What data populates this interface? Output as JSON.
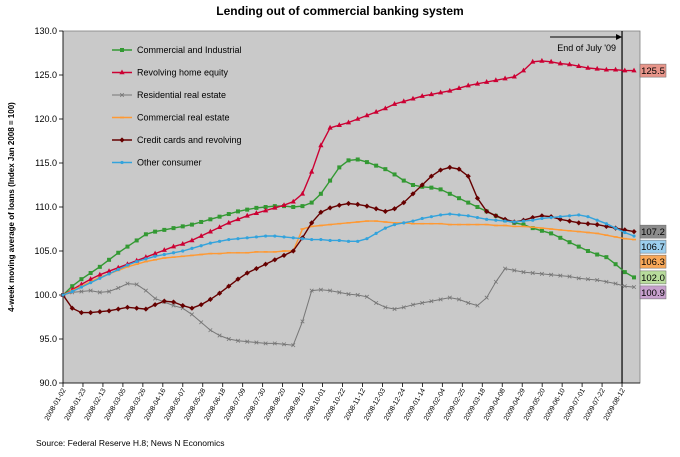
{
  "chart_data": {
    "type": "line",
    "title": "Lending out of commercial banking system",
    "ylabel": "4-week moving average of loans (Index Jan 2008 = 100)",
    "xlabel": "",
    "ylim": [
      90,
      130
    ],
    "yticks": [
      "90.0",
      "95.0",
      "100.0",
      "105.0",
      "110.0",
      "115.0",
      "120.0",
      "125.0",
      "130.0"
    ],
    "x_tick_labels": [
      "2008-01-02",
      "2008-01-23",
      "2008-02-13",
      "2008-03-05",
      "2008-03-26",
      "2008-04-16",
      "2008-05-07",
      "2008-05-28",
      "2008-06-18",
      "2008-07-09",
      "2008-07-30",
      "2008-08-20",
      "2008-09-10",
      "2008-10-01",
      "2008-10-22",
      "2008-11-12",
      "2008-12-03",
      "2008-12-24",
      "2009-01-14",
      "2009-02-04",
      "2009-02-25",
      "2009-03-18",
      "2009-04-08",
      "2009-04-29",
      "2009-05-20",
      "2009-06-10",
      "2009-07-01",
      "2009-07-22",
      "2009-08-12"
    ],
    "marker_line": {
      "label": "End of July '09",
      "x_index": 28.0
    },
    "series": [
      {
        "name": "Commercial and Industrial",
        "color": "#339933",
        "marker": "square",
        "end_label": "102.0",
        "label_color": "#b8dc9c",
        "values": [
          100,
          101,
          101.8,
          102.5,
          103.2,
          104,
          104.8,
          105.5,
          106.2,
          106.9,
          107.2,
          107.4,
          107.6,
          107.8,
          108,
          108.3,
          108.6,
          108.9,
          109.2,
          109.5,
          109.7,
          109.9,
          110,
          110.1,
          110.1,
          110,
          110.1,
          110.5,
          111.5,
          113,
          114.5,
          115.3,
          115.4,
          115.1,
          114.7,
          114.3,
          113.7,
          113,
          112.5,
          112.3,
          112.2,
          112,
          111.5,
          111,
          110.5,
          110,
          109.5,
          109,
          108.5,
          108.2,
          108,
          107.6,
          107.3,
          107,
          106.5,
          106,
          105.5,
          105,
          104.6,
          104.3,
          103.5,
          102.6,
          102
        ]
      },
      {
        "name": "Revolving home equity",
        "color": "#cc0033",
        "marker": "triangle",
        "end_label": "125.5",
        "label_color": "#e8958a",
        "values": [
          100,
          100.6,
          101.2,
          101.8,
          102.3,
          102.7,
          103.1,
          103.5,
          103.9,
          104.3,
          104.7,
          105.1,
          105.5,
          105.8,
          106.2,
          106.7,
          107.2,
          107.7,
          108.2,
          108.6,
          109,
          109.3,
          109.6,
          109.9,
          110.2,
          110.6,
          111.5,
          114,
          117,
          119,
          119.3,
          119.6,
          120,
          120.4,
          120.8,
          121.2,
          121.7,
          122,
          122.3,
          122.6,
          122.8,
          123,
          123.2,
          123.5,
          123.8,
          124,
          124.2,
          124.4,
          124.6,
          124.8,
          125.5,
          126.5,
          126.6,
          126.5,
          126.3,
          126.2,
          126,
          125.8,
          125.7,
          125.6,
          125.6,
          125.5,
          125.5
        ]
      },
      {
        "name": "Residential real estate",
        "color": "#777777",
        "marker": "cross",
        "end_label": "100.9",
        "label_color": "#c7a0cd",
        "values": [
          100,
          100.3,
          100.4,
          100.5,
          100.3,
          100.4,
          100.8,
          101.3,
          101.2,
          100.5,
          99.6,
          99.2,
          98.8,
          98.5,
          97.8,
          96.9,
          96,
          95.4,
          95,
          94.8,
          94.7,
          94.6,
          94.5,
          94.5,
          94.4,
          94.3,
          97,
          100.5,
          100.6,
          100.5,
          100.3,
          100.1,
          100,
          99.8,
          99.1,
          98.6,
          98.4,
          98.6,
          98.9,
          99.1,
          99.3,
          99.5,
          99.7,
          99.5,
          99.1,
          98.8,
          99.7,
          101.5,
          103,
          102.8,
          102.6,
          102.5,
          102.4,
          102.3,
          102.2,
          102.1,
          101.9,
          101.8,
          101.7,
          101.5,
          101.3,
          101,
          100.9
        ]
      },
      {
        "name": "Commercial real estate",
        "color": "#ff9933",
        "marker": "dash",
        "end_label": "106.3",
        "label_color": "#f8a858",
        "values": [
          100,
          100.5,
          101,
          101.5,
          102,
          102.4,
          102.8,
          103.2,
          103.5,
          103.8,
          104,
          104.2,
          104.3,
          104.4,
          104.5,
          104.6,
          104.7,
          104.7,
          104.8,
          104.8,
          104.8,
          104.9,
          104.9,
          104.9,
          105,
          105,
          107.5,
          107.8,
          107.9,
          108,
          108.1,
          108.2,
          108.3,
          108.4,
          108.4,
          108.3,
          108.2,
          108.2,
          108.1,
          108.1,
          108.1,
          108.1,
          108,
          108,
          108,
          108,
          108,
          107.9,
          107.9,
          107.8,
          107.8,
          107.7,
          107.6,
          107.5,
          107.4,
          107.3,
          107.2,
          107.1,
          107,
          106.8,
          106.6,
          106.4,
          106.3
        ]
      },
      {
        "name": "Credit cards and revolving",
        "color": "#660000",
        "marker": "diamond",
        "end_label": "107.2",
        "label_color": "#8c8c8c",
        "values": [
          100,
          98.5,
          98,
          98,
          98.1,
          98.2,
          98.4,
          98.6,
          98.5,
          98.4,
          98.9,
          99.3,
          99.2,
          98.8,
          98.5,
          98.9,
          99.5,
          100.2,
          101,
          101.8,
          102.5,
          103,
          103.5,
          104,
          104.5,
          105,
          106.5,
          108.2,
          109.4,
          109.9,
          110.2,
          110.4,
          110.3,
          110.1,
          109.8,
          109.5,
          109.8,
          110.5,
          111.5,
          112.5,
          113.5,
          114.2,
          114.5,
          114.3,
          113.5,
          111,
          109.5,
          109,
          108.6,
          108.3,
          108.5,
          108.8,
          109,
          108.9,
          108.6,
          108.4,
          108.2,
          108.1,
          108,
          107.8,
          107.6,
          107.4,
          107.2
        ]
      },
      {
        "name": "Other consumer",
        "color": "#33a3dc",
        "marker": "circle",
        "end_label": "106.7",
        "label_color": "#9ccfee",
        "values": [
          100,
          100.4,
          100.9,
          101.4,
          101.9,
          102.4,
          102.9,
          103.4,
          103.8,
          104.1,
          104.4,
          104.6,
          104.8,
          105,
          105.3,
          105.6,
          105.9,
          106.1,
          106.3,
          106.4,
          106.5,
          106.6,
          106.7,
          106.7,
          106.6,
          106.5,
          106.4,
          106.3,
          106.3,
          106.2,
          106.2,
          106.1,
          106.1,
          106.4,
          107,
          107.6,
          108,
          108.2,
          108.4,
          108.7,
          108.9,
          109.1,
          109.2,
          109.1,
          109,
          108.8,
          108.6,
          108.5,
          108.4,
          108.3,
          108.4,
          108.5,
          108.7,
          108.8,
          108.9,
          109,
          109.1,
          108.9,
          108.5,
          108.1,
          107.6,
          107.1,
          106.7
        ]
      }
    ]
  },
  "source_note": "Source: Federal Reserve H.8; News N Economics"
}
